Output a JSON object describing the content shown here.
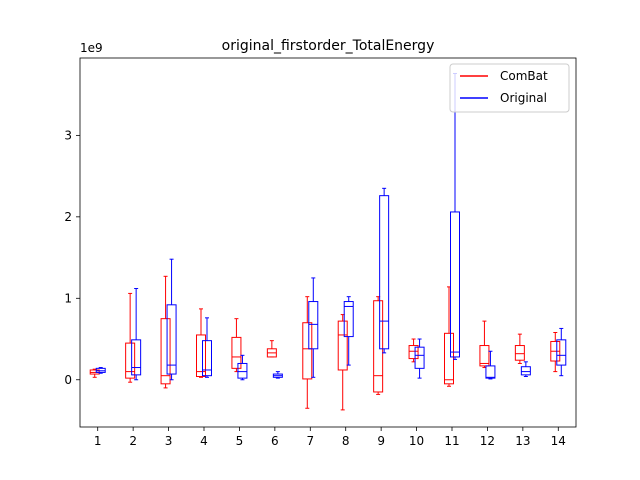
{
  "chart_data": {
    "type": "boxplot",
    "title": "original_firstorder_TotalEnergy",
    "scale_label": "1e9",
    "xlabel": "",
    "ylabel": "",
    "ylim": [
      -0.58,
      3.95
    ],
    "yticks": [
      0,
      1,
      2,
      3
    ],
    "categories": [
      "1",
      "2",
      "3",
      "4",
      "5",
      "6",
      "7",
      "8",
      "9",
      "10",
      "11",
      "12",
      "13",
      "14"
    ],
    "legend": {
      "position": "top-right"
    },
    "series": [
      {
        "name": "ComBat",
        "color": "#ff0000",
        "boxes": [
          {
            "min": 0.03,
            "q1": 0.07,
            "median": 0.09,
            "q3": 0.12,
            "max": 0.13
          },
          {
            "min": -0.03,
            "q1": 0.02,
            "median": 0.1,
            "q3": 0.45,
            "max": 1.06
          },
          {
            "min": -0.1,
            "q1": -0.05,
            "median": 0.05,
            "q3": 0.75,
            "max": 1.27
          },
          {
            "min": 0.03,
            "q1": 0.04,
            "median": 0.1,
            "q3": 0.55,
            "max": 0.87
          },
          {
            "min": 0.1,
            "q1": 0.14,
            "median": 0.28,
            "q3": 0.52,
            "max": 0.75
          },
          {
            "min": 0.28,
            "q1": 0.28,
            "median": 0.33,
            "q3": 0.38,
            "max": 0.48
          },
          {
            "min": -0.35,
            "q1": 0.01,
            "median": 0.38,
            "q3": 0.7,
            "max": 1.02
          },
          {
            "min": -0.37,
            "q1": 0.12,
            "median": 0.55,
            "q3": 0.72,
            "max": 0.8
          },
          {
            "min": -0.18,
            "q1": -0.15,
            "median": 0.05,
            "q3": 0.97,
            "max": 1.02
          },
          {
            "min": 0.22,
            "q1": 0.26,
            "median": 0.35,
            "q3": 0.42,
            "max": 0.5
          },
          {
            "min": -0.08,
            "q1": -0.05,
            "median": 0.0,
            "q3": 0.57,
            "max": 1.14
          },
          {
            "min": 0.15,
            "q1": 0.17,
            "median": 0.2,
            "q3": 0.42,
            "max": 0.72
          },
          {
            "min": 0.2,
            "q1": 0.24,
            "median": 0.32,
            "q3": 0.42,
            "max": 0.56
          },
          {
            "min": 0.1,
            "q1": 0.23,
            "median": 0.35,
            "q3": 0.47,
            "max": 0.58
          }
        ]
      },
      {
        "name": "Original",
        "color": "#0000ff",
        "boxes": [
          {
            "min": 0.08,
            "q1": 0.09,
            "median": 0.11,
            "q3": 0.14,
            "max": 0.15
          },
          {
            "min": 0.0,
            "q1": 0.06,
            "median": 0.15,
            "q3": 0.49,
            "max": 1.12
          },
          {
            "min": 0.0,
            "q1": 0.07,
            "median": 0.18,
            "q3": 0.92,
            "max": 1.48
          },
          {
            "min": 0.03,
            "q1": 0.05,
            "median": 0.12,
            "q3": 0.48,
            "max": 0.76
          },
          {
            "min": 0.0,
            "q1": 0.02,
            "median": 0.1,
            "q3": 0.2,
            "max": 0.3
          },
          {
            "min": 0.02,
            "q1": 0.03,
            "median": 0.05,
            "q3": 0.07,
            "max": 0.1
          },
          {
            "min": 0.03,
            "q1": 0.38,
            "median": 0.68,
            "q3": 0.96,
            "max": 1.25
          },
          {
            "min": 0.18,
            "q1": 0.53,
            "median": 0.9,
            "q3": 0.96,
            "max": 1.02
          },
          {
            "min": 0.33,
            "q1": 0.38,
            "median": 0.72,
            "q3": 2.26,
            "max": 2.35
          },
          {
            "min": 0.02,
            "q1": 0.14,
            "median": 0.3,
            "q3": 0.4,
            "max": 0.5
          },
          {
            "min": 0.25,
            "q1": 0.28,
            "median": 0.34,
            "q3": 2.06,
            "max": 3.76
          },
          {
            "min": 0.01,
            "q1": 0.02,
            "median": 0.03,
            "q3": 0.17,
            "max": 0.35
          },
          {
            "min": 0.04,
            "q1": 0.06,
            "median": 0.1,
            "q3": 0.16,
            "max": 0.22
          },
          {
            "min": 0.05,
            "q1": 0.18,
            "median": 0.3,
            "q3": 0.49,
            "max": 0.63
          }
        ]
      }
    ]
  }
}
